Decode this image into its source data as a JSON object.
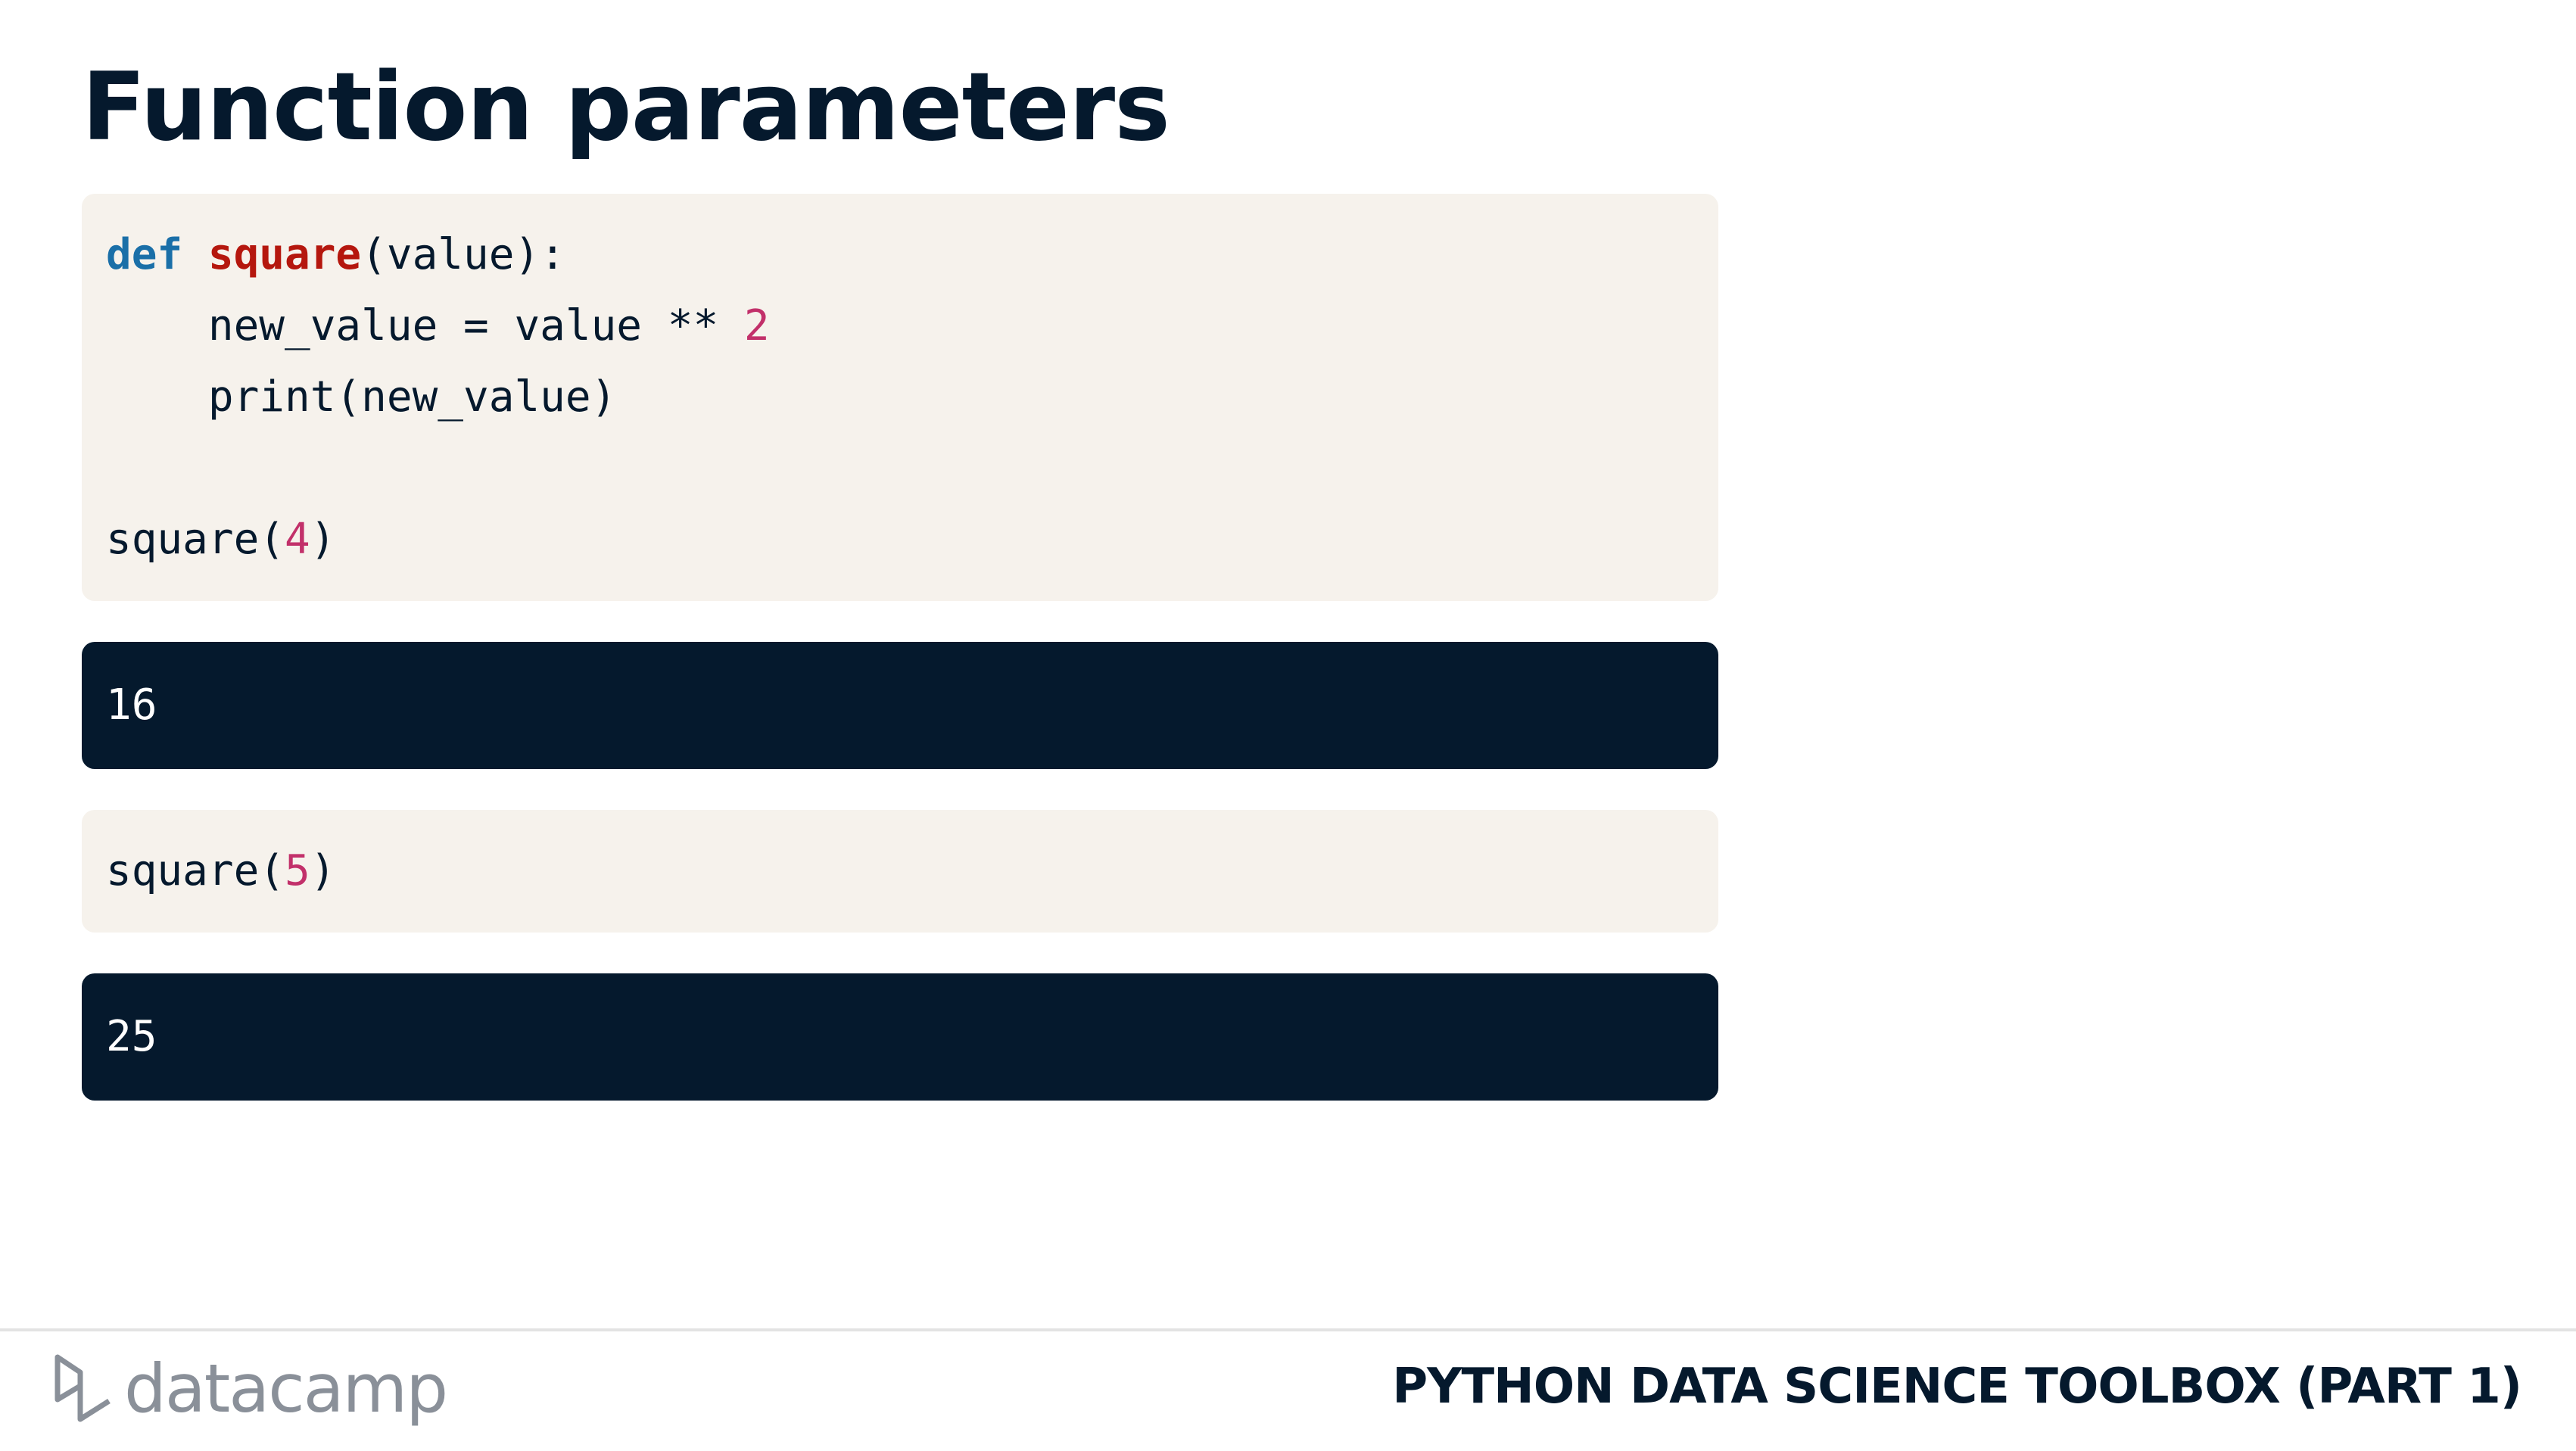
{
  "header": {
    "title": "Function parameters"
  },
  "cells": [
    {
      "type": "code",
      "lines": [
        [
          {
            "text": "def ",
            "color": "#1a6fa8",
            "weight": "bold"
          },
          {
            "text": "square",
            "color": "#b5170e",
            "weight": "bold"
          },
          {
            "text": "(value):"
          }
        ],
        [
          {
            "text": "    new_value = value ** "
          },
          {
            "text": "2",
            "color": "#c2306a"
          }
        ],
        [
          {
            "text": "    print(new_value)"
          }
        ],
        [],
        [
          {
            "text": "square("
          },
          {
            "text": "4",
            "color": "#c2306a"
          },
          {
            "text": ")"
          }
        ]
      ]
    },
    {
      "type": "output",
      "lines": [
        [
          {
            "text": "16"
          }
        ]
      ]
    },
    {
      "type": "code",
      "lines": [
        [
          {
            "text": "square("
          },
          {
            "text": "5",
            "color": "#c2306a"
          },
          {
            "text": ")"
          }
        ]
      ]
    },
    {
      "type": "output",
      "lines": [
        [
          {
            "text": "25"
          }
        ]
      ]
    }
  ],
  "footer": {
    "logo": "datacamp",
    "course": "PYTHON DATA SCIENCE TOOLBOX (PART 1)"
  }
}
